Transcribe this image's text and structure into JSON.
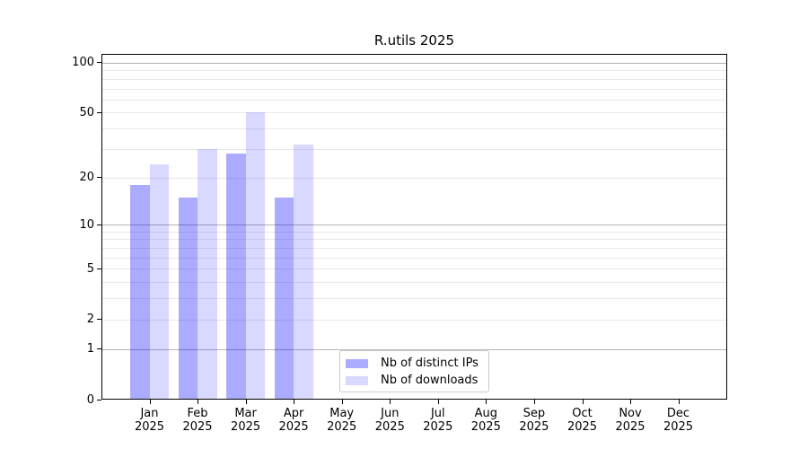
{
  "colors": {
    "background": "#ffffff",
    "spine": "#000000",
    "grid_major": "#b3b3b3",
    "grid_minor": "#e9e9e9",
    "text": "#000000",
    "legend_border": "#cccccc",
    "bar_distinct_ips": "rgba(0,0,255,0.33)",
    "bar_downloads": "rgba(0,0,255,0.15)"
  },
  "chart_data": {
    "type": "bar",
    "title": "R.utils 2025",
    "xlabel": "",
    "ylabel": "",
    "x_year": "2025",
    "categories": [
      "Jan",
      "Feb",
      "Mar",
      "Apr",
      "May",
      "Jun",
      "Jul",
      "Aug",
      "Sep",
      "Oct",
      "Nov",
      "Dec"
    ],
    "series": [
      {
        "name": "Nb of distinct IPs",
        "color": "rgba(0,0,255,0.33)",
        "values": [
          18,
          15,
          28,
          15,
          null,
          null,
          null,
          null,
          null,
          null,
          null,
          null
        ]
      },
      {
        "name": "Nb of downloads",
        "color": "rgba(0,0,255,0.15)",
        "values": [
          24,
          30,
          50,
          32,
          null,
          null,
          null,
          null,
          null,
          null,
          null,
          null
        ]
      }
    ],
    "yscale": "log1p",
    "ylim": [
      0,
      113
    ],
    "yticks": [
      100,
      50,
      20,
      10,
      5,
      2,
      1,
      0
    ],
    "grid": {
      "on": true,
      "major_lines": [
        1,
        10,
        100
      ],
      "minor_lines": [
        2,
        3,
        4,
        5,
        6,
        7,
        8,
        9,
        20,
        30,
        40,
        50,
        60,
        70,
        80,
        90
      ]
    },
    "legend": {
      "position": "lower-center"
    }
  }
}
